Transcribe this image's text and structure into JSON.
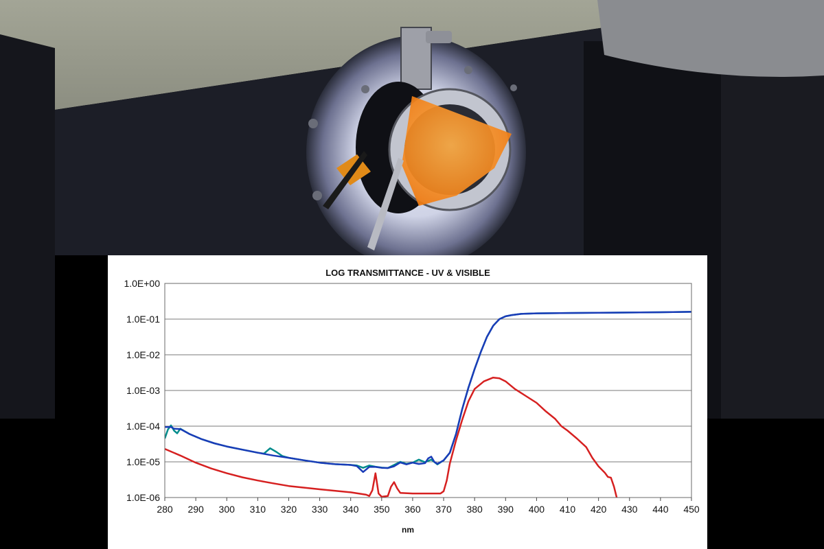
{
  "chart_data": {
    "type": "line",
    "title": "LOG TRANSMITTANCE - UV & VISIBLE",
    "xlabel": "nm",
    "ylabel": "",
    "y_scale": "log",
    "xlim": [
      280,
      450
    ],
    "ylim": [
      1e-06,
      1
    ],
    "grid": true,
    "legend": "none",
    "x_ticks": [
      "280",
      "290",
      "300",
      "310",
      "320",
      "330",
      "340",
      "350",
      "360",
      "370",
      "380",
      "390",
      "400",
      "410",
      "420",
      "430",
      "440",
      "450"
    ],
    "y_ticks": [
      {
        "label": "1.0E+00",
        "value": 1
      },
      {
        "label": "1.0E-01",
        "value": 0.1
      },
      {
        "label": "1.0E-02",
        "value": 0.01
      },
      {
        "label": "1.0E-03",
        "value": 0.001
      },
      {
        "label": "1.0E-04",
        "value": 0.0001
      },
      {
        "label": "1.0E-05",
        "value": 1e-05
      },
      {
        "label": "1.0E-06",
        "value": 1e-06
      }
    ],
    "series": [
      {
        "color": "#008c8c",
        "points": [
          [
            280,
            4.5e-05
          ],
          [
            281,
            8e-05
          ],
          [
            282,
            0.000105
          ],
          [
            283,
            7.5e-05
          ],
          [
            284,
            6.3e-05
          ],
          [
            285,
            8.5e-05
          ],
          [
            288,
            6e-05
          ],
          [
            292,
            4.3e-05
          ],
          [
            296,
            3.3e-05
          ],
          [
            300,
            2.7e-05
          ],
          [
            305,
            2.2e-05
          ],
          [
            310,
            1.8e-05
          ],
          [
            312,
            1.7e-05
          ],
          [
            314,
            2.4e-05
          ],
          [
            316,
            1.9e-05
          ],
          [
            318,
            1.45e-05
          ],
          [
            320,
            1.3e-05
          ],
          [
            325,
            1.1e-05
          ],
          [
            330,
            9.5e-06
          ],
          [
            335,
            8.6e-06
          ],
          [
            340,
            8.2e-06
          ],
          [
            342,
            7.9e-06
          ],
          [
            344,
            6.8e-06
          ],
          [
            346,
            7.9e-06
          ],
          [
            348,
            7.3e-06
          ],
          [
            350,
            6.9e-06
          ],
          [
            352,
            6.7e-06
          ],
          [
            354,
            8.2e-06
          ],
          [
            356,
            1e-05
          ],
          [
            358,
            8.8e-06
          ],
          [
            360,
            9.5e-06
          ],
          [
            362,
            1.15e-05
          ],
          [
            364,
            9.8e-06
          ],
          [
            366,
            1.15e-05
          ],
          [
            368,
            8.5e-06
          ],
          [
            370,
            1.1e-05
          ],
          [
            372,
            1.8e-05
          ],
          [
            374,
            6e-05
          ],
          [
            376,
            0.0003
          ],
          [
            378,
            0.0012
          ],
          [
            380,
            0.004
          ],
          [
            382,
            0.012
          ],
          [
            384,
            0.032
          ],
          [
            386,
            0.065
          ],
          [
            388,
            0.1
          ],
          [
            390,
            0.12
          ],
          [
            392,
            0.13
          ],
          [
            395,
            0.14
          ],
          [
            400,
            0.145
          ],
          [
            410,
            0.148
          ],
          [
            420,
            0.15
          ],
          [
            430,
            0.153
          ],
          [
            440,
            0.156
          ],
          [
            450,
            0.16
          ]
        ]
      },
      {
        "color": "#1a3cb8",
        "points": [
          [
            280,
            9.5e-05
          ],
          [
            282,
            9.5e-05
          ],
          [
            283,
            8.5e-05
          ],
          [
            285,
            8.3e-05
          ],
          [
            288,
            6e-05
          ],
          [
            292,
            4.3e-05
          ],
          [
            296,
            3.3e-05
          ],
          [
            300,
            2.7e-05
          ],
          [
            305,
            2.2e-05
          ],
          [
            310,
            1.8e-05
          ],
          [
            315,
            1.5e-05
          ],
          [
            320,
            1.3e-05
          ],
          [
            325,
            1.1e-05
          ],
          [
            330,
            9.5e-06
          ],
          [
            335,
            8.6e-06
          ],
          [
            340,
            8.2e-06
          ],
          [
            342,
            7.6e-06
          ],
          [
            344,
            5.2e-06
          ],
          [
            346,
            7.2e-06
          ],
          [
            348,
            7.2e-06
          ],
          [
            350,
            6.8e-06
          ],
          [
            352,
            6.7e-06
          ],
          [
            354,
            7.5e-06
          ],
          [
            356,
            9.6e-06
          ],
          [
            358,
            8.5e-06
          ],
          [
            360,
            9.5e-06
          ],
          [
            362,
            8.7e-06
          ],
          [
            364,
            9.2e-06
          ],
          [
            365,
            1.25e-05
          ],
          [
            366,
            1.4e-05
          ],
          [
            367,
            1e-05
          ],
          [
            368,
            8.8e-06
          ],
          [
            370,
            1.1e-05
          ],
          [
            372,
            1.8e-05
          ],
          [
            374,
            6e-05
          ],
          [
            376,
            0.0003
          ],
          [
            378,
            0.0012
          ],
          [
            380,
            0.004
          ],
          [
            382,
            0.012
          ],
          [
            384,
            0.032
          ],
          [
            386,
            0.065
          ],
          [
            388,
            0.1
          ],
          [
            390,
            0.12
          ],
          [
            392,
            0.13
          ],
          [
            395,
            0.14
          ],
          [
            400,
            0.145
          ],
          [
            410,
            0.148
          ],
          [
            420,
            0.15
          ],
          [
            430,
            0.153
          ],
          [
            440,
            0.156
          ],
          [
            450,
            0.16
          ]
        ]
      },
      {
        "color": "#d62020",
        "points": [
          [
            280,
            2.3e-05
          ],
          [
            285,
            1.5e-05
          ],
          [
            290,
            9.5e-06
          ],
          [
            295,
            6.5e-06
          ],
          [
            300,
            4.8e-06
          ],
          [
            305,
            3.7e-06
          ],
          [
            310,
            3e-06
          ],
          [
            315,
            2.5e-06
          ],
          [
            320,
            2.1e-06
          ],
          [
            330,
            1.7e-06
          ],
          [
            340,
            1.4e-06
          ],
          [
            345,
            1.2e-06
          ],
          [
            346,
            1.1e-06
          ],
          [
            347,
            1.6e-06
          ],
          [
            348,
            4.8e-06
          ],
          [
            349,
            1.3e-06
          ],
          [
            350,
            1.05e-06
          ],
          [
            352,
            1.1e-06
          ],
          [
            353,
            2e-06
          ],
          [
            354,
            2.7e-06
          ],
          [
            355,
            1.8e-06
          ],
          [
            356,
            1.35e-06
          ],
          [
            360,
            1.3e-06
          ],
          [
            365,
            1.3e-06
          ],
          [
            369,
            1.3e-06
          ],
          [
            370,
            1.5e-06
          ],
          [
            371,
            3e-06
          ],
          [
            372,
            9e-06
          ],
          [
            374,
            4e-05
          ],
          [
            376,
            0.00015
          ],
          [
            378,
            0.0005
          ],
          [
            380,
            0.0011
          ],
          [
            383,
            0.0018
          ],
          [
            386,
            0.0023
          ],
          [
            388,
            0.0022
          ],
          [
            390,
            0.0018
          ],
          [
            393,
            0.0011
          ],
          [
            396,
            0.00075
          ],
          [
            400,
            0.00045
          ],
          [
            403,
            0.00026
          ],
          [
            406,
            0.00016
          ],
          [
            408,
            0.0001
          ],
          [
            410,
            7.5e-05
          ],
          [
            413,
            4.5e-05
          ],
          [
            416,
            2.6e-05
          ],
          [
            418,
            1.3e-05
          ],
          [
            420,
            7.5e-06
          ],
          [
            422,
            5e-06
          ],
          [
            423,
            3.8e-06
          ],
          [
            424,
            3.6e-06
          ],
          [
            425,
            2e-06
          ],
          [
            426,
            9e-07
          ]
        ]
      }
    ]
  }
}
